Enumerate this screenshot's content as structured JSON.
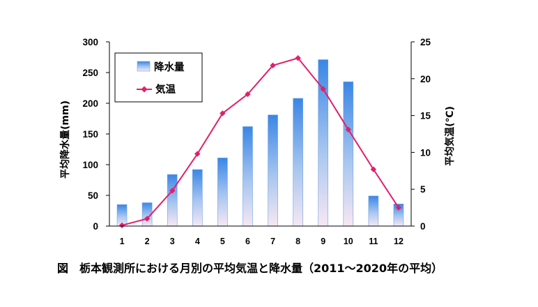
{
  "chart_data": {
    "type": "bar",
    "categories": [
      "1",
      "2",
      "3",
      "4",
      "5",
      "6",
      "7",
      "8",
      "9",
      "10",
      "11",
      "12"
    ],
    "series": [
      {
        "name": "降水量",
        "type": "bar",
        "axis": "left",
        "values": [
          35,
          38,
          84,
          92,
          111,
          162,
          181,
          208,
          271,
          235,
          49,
          36
        ],
        "color": "#3a86e6",
        "color_end": "#f7e7f3"
      },
      {
        "name": "気温",
        "type": "line",
        "axis": "right",
        "values": [
          0.1,
          1.0,
          4.8,
          9.8,
          15.3,
          17.9,
          21.8,
          22.8,
          18.6,
          13.1,
          7.7,
          2.5
        ],
        "color": "#e21f6b"
      }
    ],
    "title": "",
    "caption": "図　栃本観測所における月別の平均気温と降水量（2011～2020年の平均）",
    "xlabel": "",
    "ylabel": "平均降水量(mm)",
    "y2label": "平均気温(℃)",
    "ylim": [
      0,
      300
    ],
    "y2lim": [
      0,
      25
    ],
    "yticks": [
      0,
      50,
      100,
      150,
      200,
      250,
      300
    ],
    "y2ticks": [
      0,
      5,
      10,
      15,
      20,
      25
    ],
    "grid": false,
    "legend": "top-left"
  }
}
